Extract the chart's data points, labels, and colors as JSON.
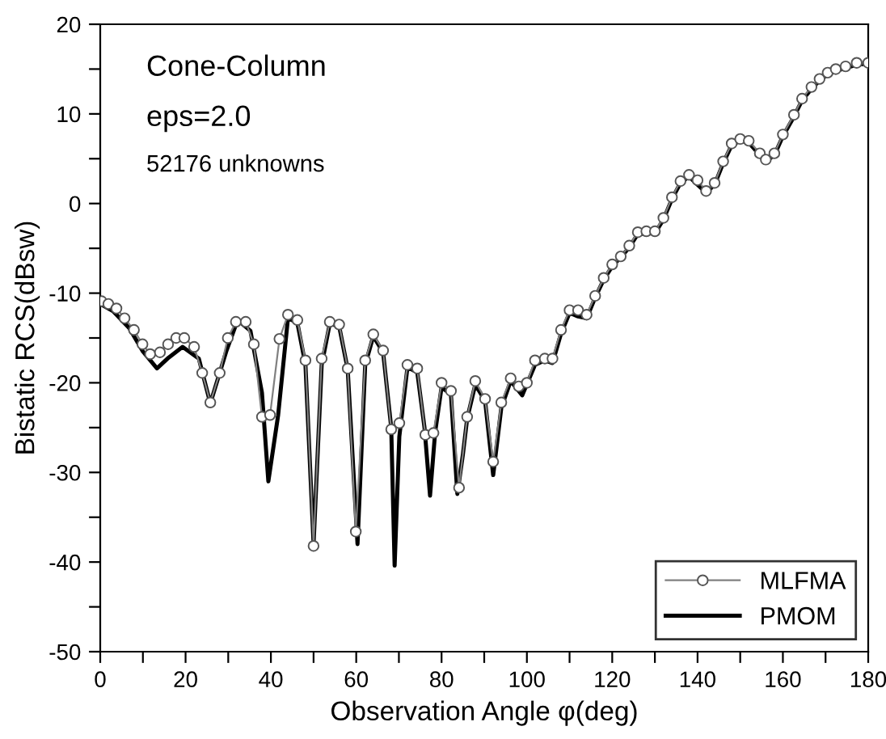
{
  "chart_data": {
    "type": "line",
    "xlabel": "Observation Angle φ(deg)",
    "ylabel": "Bistatic RCS(dBsw)",
    "annotations": [
      "Cone-Column",
      "eps=2.0",
      "52176 unknowns"
    ],
    "xlim": [
      0,
      180
    ],
    "ylim": [
      -50,
      20
    ],
    "xticks": [
      0,
      {
        "value": 10,
        "label": null
      },
      20,
      {
        "value": 30,
        "label": null
      },
      40,
      {
        "value": 50,
        "label": null
      },
      60,
      {
        "value": 70,
        "label": null
      },
      80,
      {
        "value": 90,
        "label": null
      },
      100,
      {
        "value": 110,
        "label": null
      },
      120,
      {
        "value": 130,
        "label": null
      },
      140,
      {
        "value": 150,
        "label": null
      },
      160,
      {
        "value": 170,
        "label": null
      },
      180
    ],
    "yticks": [
      -50,
      {
        "value": -45,
        "label": null
      },
      -40,
      {
        "value": -35,
        "label": null
      },
      -30,
      {
        "value": -25,
        "label": null
      },
      -20,
      {
        "value": -15,
        "label": null
      },
      -10,
      {
        "value": -5,
        "label": null
      },
      0,
      {
        "value": 5,
        "label": null
      },
      10,
      {
        "value": 15,
        "label": null
      },
      20
    ],
    "grid": false,
    "legend": "bottom right",
    "series": [
      {
        "name": "MLFMA",
        "color": "#808080",
        "marker": "circle",
        "line_style": "solid",
        "x": [
          0.3,
          1.9,
          3.8,
          5.7,
          7.9,
          9.9,
          11.7,
          14,
          15.9,
          17.8,
          19.7,
          22,
          23.9,
          25.8,
          28,
          29.9,
          31.8,
          34.1,
          36,
          37.9,
          39.8,
          42,
          44,
          46.2,
          48.1,
          50,
          51.9,
          53.8,
          56,
          58,
          59.9,
          62.1,
          64,
          66.3,
          68.2,
          70.1,
          72,
          74.3,
          76.2,
          78.1,
          80,
          82.2,
          84.1,
          86,
          87.9,
          90.2,
          92.1,
          94,
          96.2,
          98.1,
          100,
          101.9,
          104.2,
          106,
          108,
          110,
          112,
          114,
          116,
          118,
          120,
          122,
          124,
          126,
          128,
          130,
          132,
          134,
          136,
          138,
          140,
          142,
          144,
          146,
          148,
          150,
          152,
          154.6,
          156,
          158,
          160,
          162.6,
          164.5,
          166.7,
          168.6,
          170.5,
          172.4,
          174.7,
          177.3,
          180
        ],
        "values": [
          -10.9,
          -11.2,
          -11.7,
          -12.8,
          -14.1,
          -15.7,
          -16.8,
          -16.6,
          -15.7,
          -15,
          -15,
          -16,
          -18.9,
          -22.2,
          -18.9,
          -15,
          -13.2,
          -13.2,
          -15.7,
          -23.8,
          -23.6,
          -15.1,
          -12.4,
          -13,
          -17.5,
          -38.2,
          -17.3,
          -13.2,
          -13.5,
          -18.4,
          -36.6,
          -17.5,
          -14.6,
          -16.4,
          -25.2,
          -24.5,
          -18,
          -18.4,
          -25.8,
          -25.6,
          -20,
          -20.9,
          -31.7,
          -23.8,
          -19.8,
          -21.8,
          -28.8,
          -22.2,
          -19.5,
          -20.4,
          -20,
          -17.5,
          -17.3,
          -17.3,
          -14.1,
          -11.9,
          -11.9,
          -12.4,
          -10.3,
          -8.3,
          -6.8,
          -5.9,
          -4.7,
          -3.2,
          -3.1,
          -3.1,
          -1.6,
          0.7,
          2.5,
          3.2,
          2.6,
          1.4,
          2.3,
          4.7,
          6.7,
          7.2,
          7.0,
          5.6,
          4.9,
          5.6,
          7.7,
          9.9,
          11.7,
          13.0,
          13.9,
          14.6,
          15.0,
          15.3,
          15.7,
          15.7
        ]
      },
      {
        "name": "PMOM",
        "color": "#000000",
        "marker": "none",
        "line_style": "solid",
        "x": [
          0,
          3,
          6.8,
          10,
          13.3,
          16,
          19.3,
          23.1,
          25.8,
          29.6,
          32.2,
          35.2,
          37.9,
          39.4,
          41.7,
          44,
          46.2,
          48.1,
          50,
          51.9,
          53.8,
          56,
          58,
          60.3,
          62.1,
          64,
          66.3,
          68.2,
          69,
          70.1,
          72,
          74.3,
          76,
          77.3,
          78.5,
          80,
          82.2,
          83.7,
          85,
          86,
          87.9,
          90.2,
          92.1,
          94,
          96.2,
          98.9,
          101.9,
          104.2,
          106,
          108,
          110,
          112,
          114,
          116,
          118,
          120,
          122,
          124,
          126,
          130,
          132,
          134,
          136,
          138,
          142,
          144,
          146,
          148,
          150,
          152,
          154.6,
          156,
          158,
          160,
          162.6,
          164.5,
          166.7,
          168.6,
          170.5,
          172.4,
          174.7,
          177.3,
          180
        ],
        "values": [
          -11.2,
          -12,
          -13.9,
          -16.5,
          -18.4,
          -17.2,
          -16.0,
          -17.3,
          -22.3,
          -16.4,
          -13.0,
          -14.2,
          -21.1,
          -31.0,
          -23.6,
          -12.8,
          -13.3,
          -18,
          -38,
          -18,
          -13.4,
          -13.7,
          -18.5,
          -38,
          -18,
          -14.8,
          -16.6,
          -25,
          -40.4,
          -26,
          -18.3,
          -18.8,
          -25,
          -32.6,
          -25.5,
          -20.5,
          -21.3,
          -32.4,
          -28,
          -24,
          -20.2,
          -22,
          -30.3,
          -22.8,
          -19.8,
          -21.4,
          -18,
          -17.5,
          -17.8,
          -14.5,
          -12.2,
          -12.6,
          -12.8,
          -10.5,
          -8.5,
          -7,
          -6,
          -4.9,
          -3.4,
          -3.3,
          -1.8,
          0.5,
          2.3,
          3,
          1.2,
          2.1,
          4.5,
          6.5,
          7,
          6.8,
          5.4,
          4.7,
          5.4,
          7.5,
          9.7,
          11.5,
          12.8,
          13.7,
          14.4,
          14.8,
          15.1,
          15.5,
          15.6
        ]
      }
    ]
  }
}
